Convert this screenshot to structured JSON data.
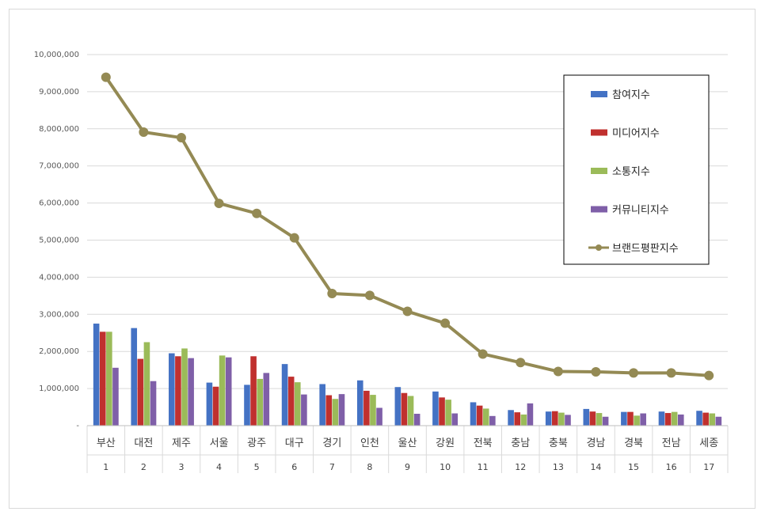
{
  "chart_data": {
    "type": "bar",
    "categories": [
      "부산",
      "대전",
      "제주",
      "서울",
      "광주",
      "대구",
      "경기",
      "인천",
      "울산",
      "강원",
      "전북",
      "충남",
      "충북",
      "경남",
      "경북",
      "전남",
      "세종"
    ],
    "ranks": [
      "1",
      "2",
      "3",
      "4",
      "5",
      "6",
      "7",
      "8",
      "9",
      "10",
      "11",
      "12",
      "13",
      "14",
      "15",
      "16",
      "17"
    ],
    "ylim": [
      0,
      10000000
    ],
    "yticks": [
      0,
      1000000,
      2000000,
      3000000,
      4000000,
      5000000,
      6000000,
      7000000,
      8000000,
      9000000,
      10000000
    ],
    "ytick_labels": [
      "-",
      "1,000,000",
      "2,000,000",
      "3,000,000",
      "4,000,000",
      "5,000,000",
      "6,000,000",
      "7,000,000",
      "8,000,000",
      "9,000,000",
      "10,000,000"
    ],
    "grid": true,
    "legend_position": "top-right",
    "series": [
      {
        "name": "참여지수",
        "kind": "bar",
        "color": "#4472c4",
        "values": [
          2750000,
          2630000,
          1950000,
          1160000,
          1100000,
          1660000,
          1120000,
          1220000,
          1040000,
          920000,
          630000,
          420000,
          380000,
          450000,
          370000,
          380000,
          400000
        ]
      },
      {
        "name": "미디어지수",
        "kind": "bar",
        "color": "#c0302e",
        "values": [
          2530000,
          1800000,
          1870000,
          1050000,
          1870000,
          1320000,
          820000,
          940000,
          880000,
          760000,
          540000,
          360000,
          390000,
          380000,
          370000,
          340000,
          350000
        ]
      },
      {
        "name": "소통지수",
        "kind": "bar",
        "color": "#9bbb59",
        "values": [
          2530000,
          2250000,
          2080000,
          1890000,
          1260000,
          1170000,
          720000,
          830000,
          800000,
          700000,
          460000,
          300000,
          350000,
          340000,
          270000,
          370000,
          330000
        ]
      },
      {
        "name": "커뮤니티지수",
        "kind": "bar",
        "color": "#7f5fa8",
        "values": [
          1560000,
          1200000,
          1820000,
          1840000,
          1420000,
          840000,
          850000,
          480000,
          320000,
          330000,
          260000,
          600000,
          290000,
          240000,
          330000,
          300000,
          240000
        ]
      },
      {
        "name": "브랜드평판지수",
        "kind": "line",
        "color": "#948a54",
        "values": [
          9390000,
          7910000,
          7760000,
          5990000,
          5720000,
          5060000,
          3560000,
          3510000,
          3080000,
          2760000,
          1930000,
          1700000,
          1460000,
          1450000,
          1420000,
          1420000,
          1350000
        ]
      }
    ]
  }
}
